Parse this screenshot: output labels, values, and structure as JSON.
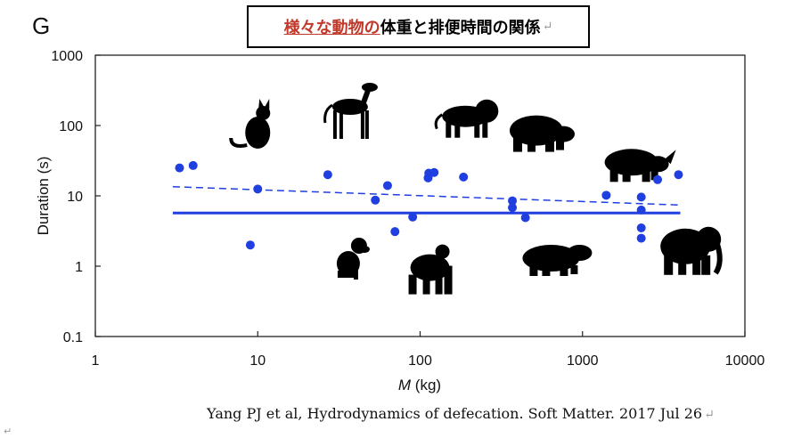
{
  "panel_letter": "G",
  "title": {
    "highlight": "様々な動物の",
    "rest": "体重と排便時間の関係",
    "return_mark": "↵"
  },
  "citation": {
    "text": "Yang PJ et al, Hydrodynamics of defecation. Soft Matter. 2017 Jul 26",
    "return_mark": "↵"
  },
  "corner_mark": "↵",
  "colors": {
    "points": "#1f3fe0",
    "fit_lines": "#1f3fe0",
    "silhouettes": "#000000"
  },
  "chart_data": {
    "type": "scatter",
    "xlabel_italic": "M",
    "xlabel_unit": " (kg)",
    "ylabel": "Duration (s)",
    "xscale": "log",
    "yscale": "log",
    "xlim": [
      1,
      10000
    ],
    "ylim": [
      0.1,
      1000
    ],
    "xticks": [
      {
        "value": 1,
        "label": "1"
      },
      {
        "value": 10,
        "label": "10"
      },
      {
        "value": 100,
        "label": "100"
      },
      {
        "value": 1000,
        "label": "1000"
      },
      {
        "value": 10000,
        "label": "10000"
      }
    ],
    "yticks": [
      {
        "value": 0.1,
        "label": "0.1"
      },
      {
        "value": 1,
        "label": "1"
      },
      {
        "value": 10,
        "label": "10"
      },
      {
        "value": 100,
        "label": "100"
      },
      {
        "value": 1000,
        "label": "1000"
      }
    ],
    "points": [
      {
        "x": 3.3,
        "y": 25
      },
      {
        "x": 4.0,
        "y": 27
      },
      {
        "x": 9.0,
        "y": 2.0
      },
      {
        "x": 10.0,
        "y": 12.5
      },
      {
        "x": 27,
        "y": 20
      },
      {
        "x": 53,
        "y": 8.7
      },
      {
        "x": 63,
        "y": 14
      },
      {
        "x": 70,
        "y": 3.1
      },
      {
        "x": 90,
        "y": 5.0
      },
      {
        "x": 112,
        "y": 18
      },
      {
        "x": 113,
        "y": 21
      },
      {
        "x": 122,
        "y": 21.5
      },
      {
        "x": 185,
        "y": 18.5
      },
      {
        "x": 370,
        "y": 8.5
      },
      {
        "x": 370,
        "y": 6.8
      },
      {
        "x": 445,
        "y": 4.9
      },
      {
        "x": 1400,
        "y": 10.2
      },
      {
        "x": 2300,
        "y": 9.6
      },
      {
        "x": 2300,
        "y": 6.3
      },
      {
        "x": 2300,
        "y": 3.5
      },
      {
        "x": 2300,
        "y": 2.5
      },
      {
        "x": 2900,
        "y": 17
      },
      {
        "x": 3900,
        "y": 20
      }
    ],
    "fit_lines": [
      {
        "style": "solid",
        "x": [
          3,
          4000
        ],
        "y": [
          5.7,
          5.7
        ]
      },
      {
        "style": "dashed",
        "x": [
          3,
          4000
        ],
        "y": [
          13.5,
          7.4
        ]
      }
    ],
    "silhouettes": [
      {
        "animal": "cat",
        "x": 10,
        "y": 100
      },
      {
        "animal": "dog",
        "x": 38,
        "y": 130
      },
      {
        "animal": "lion",
        "x": 190,
        "y": 135
      },
      {
        "animal": "bear",
        "x": 520,
        "y": 85
      },
      {
        "animal": "rhino",
        "x": 2000,
        "y": 30
      },
      {
        "animal": "small dog",
        "x": 38,
        "y": 1.3
      },
      {
        "animal": "gorilla",
        "x": 115,
        "y": 0.85
      },
      {
        "animal": "hippo",
        "x": 640,
        "y": 1.3
      },
      {
        "animal": "elephant",
        "x": 4300,
        "y": 1.7
      }
    ]
  }
}
